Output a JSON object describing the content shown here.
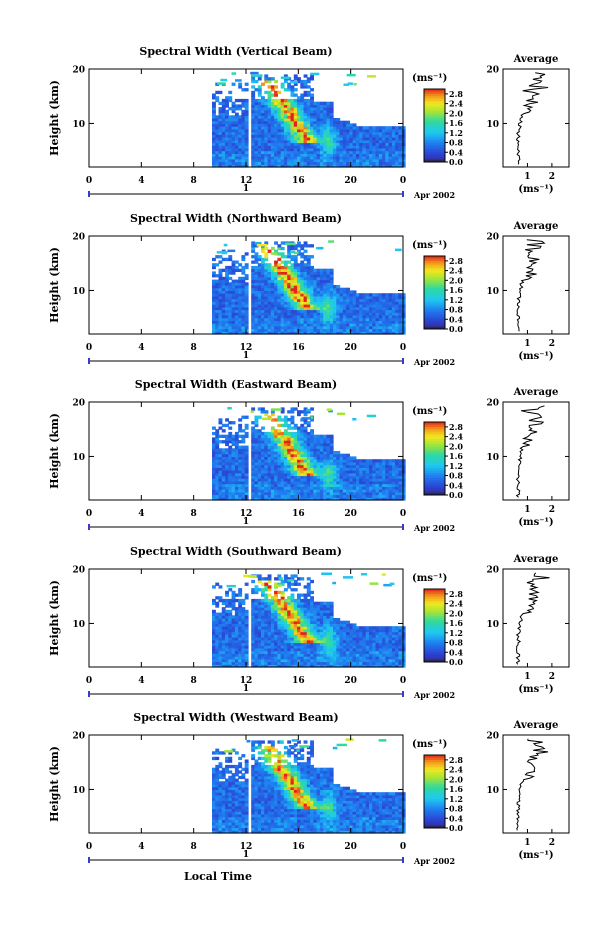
{
  "figure": {
    "xlabel_common": "Local Time",
    "colorbar_unit": "(ms⁻¹)",
    "date_label": "Apr 2002",
    "day_marker": "1"
  },
  "chart_data": [
    {
      "type": "heatmap",
      "title": "Spectral Width (Vertical Beam)",
      "ylabel": "Height (km)",
      "x_ticks": [
        "0",
        "4",
        "8",
        "12",
        "16",
        "20",
        "0"
      ],
      "y_ticks": [
        "20",
        "10"
      ],
      "xlim": [
        0,
        24
      ],
      "ylim": [
        2,
        20
      ],
      "colorbar_ticks": [
        "2.8",
        "2.4",
        "2.0",
        "1.6",
        "1.2",
        "0.8",
        "0.4",
        "0.0"
      ],
      "colorbar_range": [
        0,
        3
      ],
      "average": {
        "title": "Average",
        "xlabel": "(ms⁻¹)",
        "x_ticks": [
          "1",
          "2"
        ],
        "y_ticks": [
          "20",
          "10"
        ],
        "xlim": [
          0,
          2.7
        ]
      }
    },
    {
      "type": "heatmap",
      "title": "Spectral Width (Northward Beam)",
      "ylabel": "Height (km)",
      "x_ticks": [
        "0",
        "4",
        "8",
        "12",
        "16",
        "20",
        "0"
      ],
      "y_ticks": [
        "20",
        "10"
      ],
      "xlim": [
        0,
        24
      ],
      "ylim": [
        2,
        20
      ],
      "colorbar_ticks": [
        "2.8",
        "2.4",
        "2.0",
        "1.6",
        "1.2",
        "0.8",
        "0.4",
        "0.0"
      ],
      "colorbar_range": [
        0,
        3
      ],
      "average": {
        "title": "Average",
        "xlabel": "(ms⁻¹)",
        "x_ticks": [
          "1",
          "2"
        ],
        "y_ticks": [
          "20",
          "10"
        ],
        "xlim": [
          0,
          2.7
        ]
      }
    },
    {
      "type": "heatmap",
      "title": "Spectral Width (Eastward Beam)",
      "ylabel": "Height (km)",
      "x_ticks": [
        "0",
        "4",
        "8",
        "12",
        "16",
        "20",
        "0"
      ],
      "y_ticks": [
        "20",
        "10"
      ],
      "xlim": [
        0,
        24
      ],
      "ylim": [
        2,
        20
      ],
      "colorbar_ticks": [
        "2.8",
        "2.4",
        "2.0",
        "1.6",
        "1.2",
        "0.8",
        "0.4",
        "0.0"
      ],
      "colorbar_range": [
        0,
        3
      ],
      "average": {
        "title": "Average",
        "xlabel": "(ms⁻¹)",
        "x_ticks": [
          "1",
          "2"
        ],
        "y_ticks": [
          "20",
          "10"
        ],
        "xlim": [
          0,
          2.7
        ]
      }
    },
    {
      "type": "heatmap",
      "title": "Spectral Width (Southward Beam)",
      "ylabel": "Height (km)",
      "x_ticks": [
        "0",
        "4",
        "8",
        "12",
        "16",
        "20",
        "0"
      ],
      "y_ticks": [
        "20",
        "10"
      ],
      "xlim": [
        0,
        24
      ],
      "ylim": [
        2,
        20
      ],
      "colorbar_ticks": [
        "2.8",
        "2.4",
        "2.0",
        "1.6",
        "1.2",
        "0.8",
        "0.4",
        "0.0"
      ],
      "colorbar_range": [
        0,
        3
      ],
      "average": {
        "title": "Average",
        "xlabel": "(ms⁻¹)",
        "x_ticks": [
          "1",
          "2"
        ],
        "y_ticks": [
          "20",
          "10"
        ],
        "xlim": [
          0,
          2.7
        ]
      }
    },
    {
      "type": "heatmap",
      "title": "Spectral Width (Westward Beam)",
      "ylabel": "Height (km)",
      "x_ticks": [
        "0",
        "4",
        "8",
        "12",
        "16",
        "20",
        "0"
      ],
      "y_ticks": [
        "20",
        "10"
      ],
      "xlim": [
        0,
        24
      ],
      "ylim": [
        2,
        20
      ],
      "colorbar_ticks": [
        "2.8",
        "2.4",
        "2.0",
        "1.6",
        "1.2",
        "0.8",
        "0.4",
        "0.0"
      ],
      "colorbar_range": [
        0,
        3
      ],
      "average": {
        "title": "Average",
        "xlabel": "(ms⁻¹)",
        "x_ticks": [
          "1",
          "2"
        ],
        "y_ticks": [
          "20",
          "10"
        ],
        "xlim": [
          0,
          2.7
        ]
      }
    }
  ]
}
